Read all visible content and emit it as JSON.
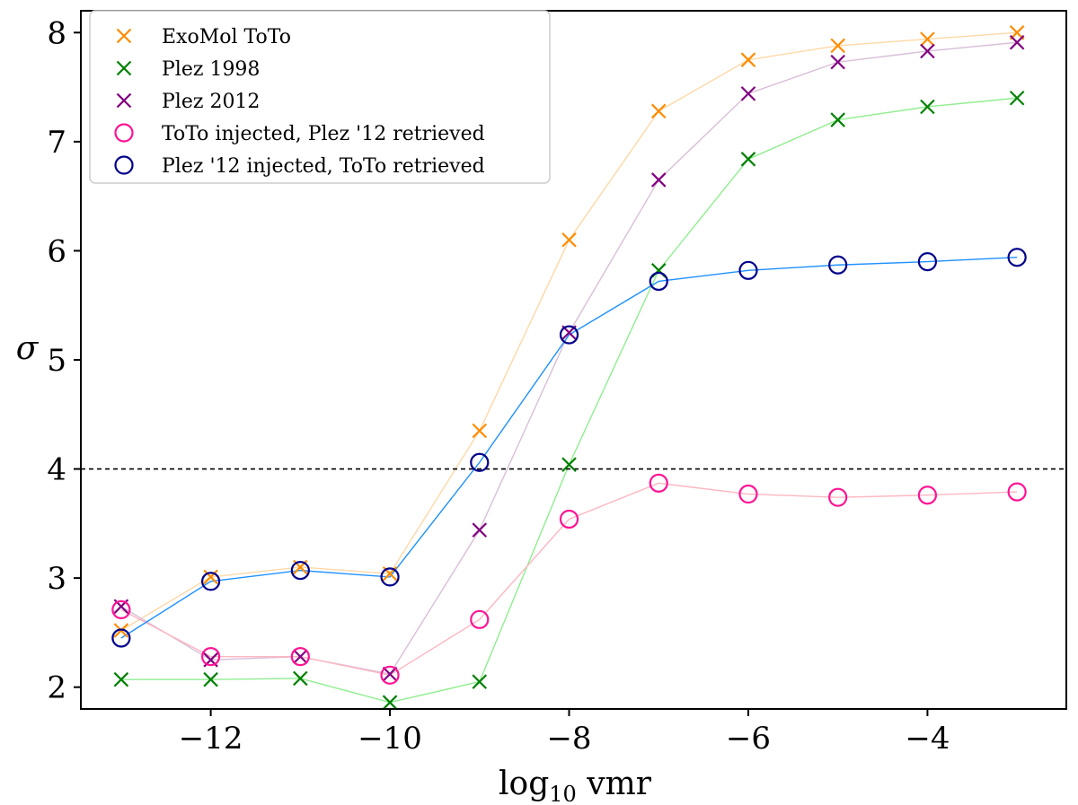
{
  "chart_data": {
    "type": "scatter",
    "title": "",
    "xlabel_base": "log",
    "xlabel_sub": "10",
    "xlabel_rest": " vmr",
    "ylabel": "σ",
    "xlim": [
      -13.45,
      -2.45
    ],
    "ylim": [
      1.8,
      8.2
    ],
    "xticks": [
      -12,
      -10,
      -8,
      -6,
      -4
    ],
    "xtick_labels": [
      "−12",
      "−10",
      "−8",
      "−6",
      "−4"
    ],
    "yticks": [
      2,
      3,
      4,
      5,
      6,
      7,
      8
    ],
    "ytick_labels": [
      "2",
      "3",
      "4",
      "5",
      "6",
      "7",
      "8"
    ],
    "threshold": 4,
    "legend_position": "top-left",
    "x": [
      -13,
      -12,
      -11,
      -10,
      -9,
      -8,
      -7,
      -6,
      -5,
      -4,
      -3
    ],
    "series": [
      {
        "name": "ExoMol ToTo",
        "marker": "x",
        "color": "#ff8c00",
        "line_color": "#ffd8a8",
        "values": [
          2.52,
          3.01,
          3.1,
          3.04,
          4.35,
          6.1,
          7.28,
          7.75,
          7.88,
          7.94,
          8.0
        ]
      },
      {
        "name": "Plez 1998",
        "marker": "x",
        "color": "#008000",
        "line_color": "#90ee90",
        "values": [
          2.07,
          2.07,
          2.08,
          1.86,
          2.05,
          4.04,
          5.82,
          6.84,
          7.2,
          7.32,
          7.4
        ]
      },
      {
        "name": "Plez 2012",
        "marker": "x",
        "color": "#800080",
        "line_color": "#d8bfd8",
        "values": [
          2.74,
          2.25,
          2.28,
          2.12,
          3.44,
          5.25,
          6.65,
          7.44,
          7.73,
          7.83,
          7.91
        ]
      },
      {
        "name": "ToTo injected, Plez '12 retrieved",
        "marker": "o",
        "color": "#ff1493",
        "line_color": "#ffb6c1",
        "values": [
          2.71,
          2.28,
          2.28,
          2.11,
          2.62,
          3.54,
          3.87,
          3.77,
          3.74,
          3.76,
          3.79
        ]
      },
      {
        "name": "Plez '12 injected, ToTo retrieved",
        "marker": "o",
        "color": "#00008b",
        "line_color": "#1e90ff",
        "values": [
          2.45,
          2.97,
          3.07,
          3.01,
          4.06,
          5.23,
          5.72,
          5.82,
          5.87,
          5.9,
          5.94
        ]
      }
    ]
  }
}
